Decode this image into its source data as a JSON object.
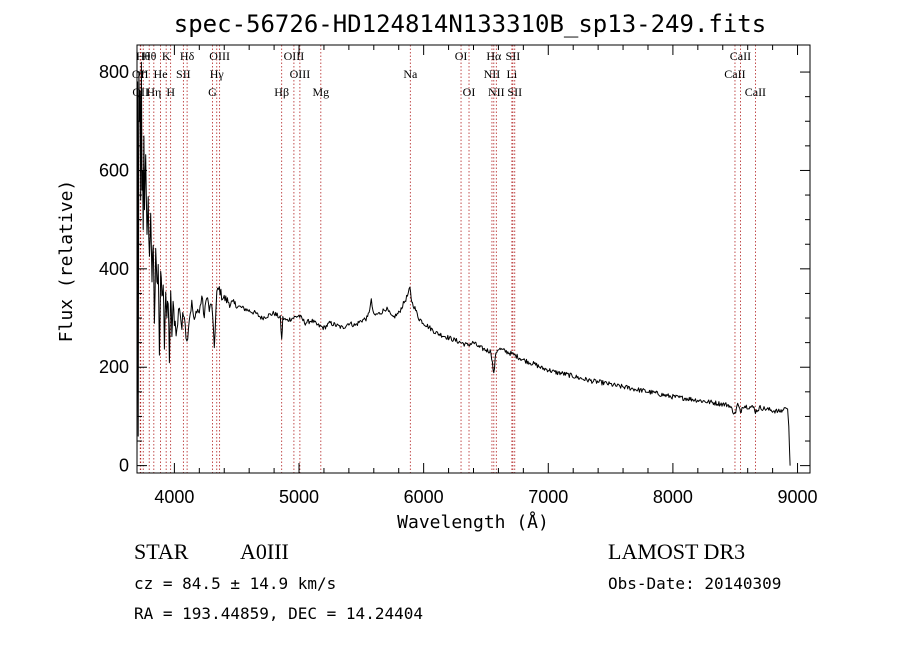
{
  "chart_data": {
    "type": "line",
    "title": "spec-56726-HD124814N133310B_sp13-249.fits",
    "xlabel": "Wavelength (Å)",
    "ylabel": "Flux (relative)",
    "xlim": [
      3700,
      9100
    ],
    "ylim": [
      -15,
      855
    ],
    "x_ticks": [
      4000,
      5000,
      6000,
      7000,
      8000,
      9000
    ],
    "y_ticks": [
      0,
      200,
      400,
      600,
      800
    ],
    "series": [
      {
        "name": "flux",
        "x": [
          3700,
          3705,
          3710,
          3715,
          3720,
          3725,
          3730,
          3735,
          3740,
          3745,
          3750,
          3755,
          3760,
          3770,
          3780,
          3790,
          3800,
          3810,
          3820,
          3830,
          3840,
          3850,
          3860,
          3870,
          3880,
          3890,
          3900,
          3910,
          3920,
          3930,
          3940,
          3950,
          3960,
          3970,
          3980,
          3990,
          4000,
          4020,
          4040,
          4060,
          4080,
          4100,
          4120,
          4140,
          4160,
          4180,
          4200,
          4220,
          4240,
          4260,
          4280,
          4300,
          4320,
          4340,
          4360,
          4380,
          4400,
          4450,
          4500,
          4550,
          4600,
          4650,
          4700,
          4750,
          4800,
          4850,
          4861,
          4870,
          4900,
          4950,
          5000,
          5050,
          5100,
          5150,
          5200,
          5250,
          5300,
          5350,
          5400,
          5450,
          5500,
          5550,
          5580,
          5600,
          5650,
          5700,
          5750,
          5800,
          5850,
          5870,
          5890,
          5900,
          5910,
          5930,
          5960,
          6000,
          6050,
          6100,
          6150,
          6200,
          6250,
          6300,
          6350,
          6400,
          6450,
          6500,
          6540,
          6563,
          6580,
          6600,
          6650,
          6700,
          6750,
          6800,
          6850,
          6900,
          6950,
          7000,
          7050,
          7100,
          7150,
          7200,
          7250,
          7300,
          7350,
          7400,
          7450,
          7500,
          7550,
          7600,
          7650,
          7700,
          7750,
          7800,
          7850,
          7900,
          7950,
          8000,
          8050,
          8100,
          8150,
          8200,
          8250,
          8300,
          8350,
          8400,
          8450,
          8498,
          8520,
          8542,
          8560,
          8600,
          8650,
          8662,
          8700,
          8750,
          8800,
          8850,
          8880,
          8900,
          8920,
          8930,
          8940
        ],
        "values": [
          0,
          780,
          60,
          800,
          700,
          760,
          540,
          820,
          560,
          600,
          480,
          670,
          520,
          640,
          450,
          540,
          410,
          500,
          380,
          460,
          300,
          430,
          360,
          410,
          230,
          400,
          330,
          370,
          250,
          360,
          300,
          330,
          220,
          340,
          270,
          320,
          300,
          270,
          330,
          280,
          320,
          250,
          300,
          330,
          290,
          320,
          310,
          345,
          300,
          350,
          315,
          330,
          240,
          350,
          360,
          345,
          340,
          330,
          325,
          320,
          315,
          310,
          300,
          305,
          310,
          300,
          255,
          300,
          295,
          300,
          305,
          290,
          295,
          285,
          280,
          290,
          285,
          280,
          290,
          285,
          295,
          300,
          335,
          305,
          310,
          320,
          300,
          310,
          335,
          345,
          360,
          340,
          330,
          320,
          300,
          290,
          280,
          270,
          265,
          260,
          255,
          250,
          245,
          250,
          240,
          235,
          232,
          185,
          230,
          238,
          233,
          228,
          222,
          215,
          210,
          205,
          198,
          195,
          190,
          188,
          185,
          182,
          178,
          175,
          172,
          170,
          168,
          165,
          162,
          160,
          158,
          155,
          153,
          150,
          148,
          145,
          142,
          140,
          138,
          137,
          135,
          133,
          131,
          129,
          127,
          125,
          123,
          105,
          125,
          108,
          122,
          120,
          118,
          110,
          118,
          115,
          112,
          110,
          112,
          118,
          115,
          80,
          0
        ]
      }
    ],
    "line_markers": [
      {
        "x": 3726,
        "label": "OII",
        "row": 1
      },
      {
        "x": 3730,
        "label": "OII",
        "row": 2
      },
      {
        "x": 3750,
        "label": "Hθ",
        "row": 0
      },
      {
        "x": 3798,
        "label": "Hθ",
        "row": 0
      },
      {
        "x": 3835,
        "label": "Hη",
        "row": 2
      },
      {
        "x": 3889,
        "label": "He",
        "row": 1
      },
      {
        "x": 3934,
        "label": "K",
        "row": 0
      },
      {
        "x": 3970,
        "label": "H",
        "row": 2
      },
      {
        "x": 4072,
        "label": "SII",
        "row": 1
      },
      {
        "x": 4102,
        "label": "Hδ",
        "row": 0
      },
      {
        "x": 4305,
        "label": "G",
        "row": 2
      },
      {
        "x": 4340,
        "label": "Hγ",
        "row": 1
      },
      {
        "x": 4363,
        "label": "OIII",
        "row": 0
      },
      {
        "x": 4861,
        "label": "Hβ",
        "row": 2
      },
      {
        "x": 4959,
        "label": "OIII",
        "row": 0
      },
      {
        "x": 5007,
        "label": "OIII",
        "row": 1
      },
      {
        "x": 5175,
        "label": "Mg",
        "row": 2
      },
      {
        "x": 5893,
        "label": "Na",
        "row": 1
      },
      {
        "x": 6300,
        "label": "OI",
        "row": 0
      },
      {
        "x": 6364,
        "label": "OI",
        "row": 2
      },
      {
        "x": 6548,
        "label": "NII",
        "row": 1
      },
      {
        "x": 6563,
        "label": "Hα",
        "row": 0
      },
      {
        "x": 6583,
        "label": "NII",
        "row": 2
      },
      {
        "x": 6708,
        "label": "Li",
        "row": 1
      },
      {
        "x": 6716,
        "label": "SII",
        "row": 0
      },
      {
        "x": 6731,
        "label": "SII",
        "row": 2
      },
      {
        "x": 8498,
        "label": "CaII",
        "row": 1
      },
      {
        "x": 8542,
        "label": "CaII",
        "row": 0
      },
      {
        "x": 8662,
        "label": "CaII",
        "row": 2
      }
    ]
  },
  "info": {
    "object_class": "STAR",
    "subclass": "A0III",
    "survey": "LAMOST DR3",
    "cz": "cz = 84.5 ± 14.9 km/s",
    "obs_date": "Obs-Date: 20140309",
    "coords": "RA = 193.44859, DEC =  14.24404"
  },
  "colors": {
    "marker_line": "#b22222",
    "axis": "#000000",
    "spectrum": "#000000"
  }
}
